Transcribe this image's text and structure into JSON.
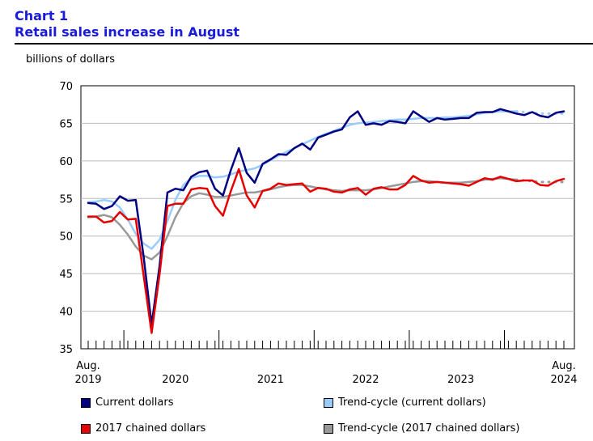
{
  "header": {
    "chart_number": "Chart 1",
    "title": "Retail sales increase in August"
  },
  "unit_label": "billions of dollars",
  "colors": {
    "current": "#000080",
    "trend_current": "#99CCFF",
    "chained": "#E60000",
    "trend_chained": "#999999",
    "title": "#1A1ADB"
  },
  "chart_data": {
    "type": "line",
    "title": "Retail sales increase in August",
    "ylabel": "billions of dollars",
    "xlabel": "",
    "ylim": [
      35,
      70
    ],
    "yticks": [
      35,
      40,
      45,
      50,
      55,
      60,
      65,
      70
    ],
    "x_start": "2019-08",
    "x_end": "2024-08",
    "x_tick_labels": [
      {
        "index": 0,
        "top": "Aug.",
        "bottom": "2019"
      },
      {
        "index": 11,
        "top": "",
        "bottom": "2020"
      },
      {
        "index": 23,
        "top": "",
        "bottom": "2021"
      },
      {
        "index": 35,
        "top": "",
        "bottom": "2022"
      },
      {
        "index": 47,
        "top": "",
        "bottom": "2023"
      },
      {
        "index": 60,
        "top": "Aug.",
        "bottom": "2024"
      }
    ],
    "year_boundaries": [
      4.5,
      16.5,
      28.5,
      40.5,
      52.5
    ],
    "series": [
      {
        "name": "Current dollars",
        "key": "current",
        "dotted_tail": 0,
        "values": [
          54.4,
          54.3,
          53.6,
          54.0,
          55.3,
          54.7,
          54.8,
          47.2,
          38.2,
          46.0,
          55.8,
          56.3,
          56.1,
          57.9,
          58.5,
          58.7,
          56.3,
          55.4,
          58.8,
          61.7,
          58.4,
          57.1,
          59.6,
          60.2,
          60.9,
          60.8,
          61.7,
          62.3,
          61.5,
          63.1,
          63.5,
          63.9,
          64.2,
          65.8,
          66.6,
          64.8,
          65.0,
          64.8,
          65.3,
          65.2,
          65.0,
          66.6,
          65.9,
          65.2,
          65.7,
          65.5,
          65.6,
          65.7,
          65.7,
          66.4,
          66.5,
          66.5,
          66.9,
          66.6,
          66.3,
          66.1,
          66.5,
          66.0,
          65.8,
          66.4,
          66.6
        ]
      },
      {
        "name": "Trend-cycle (current dollars)",
        "key": "trend_current",
        "dotted_tail": 6,
        "values": [
          54.5,
          54.6,
          54.8,
          54.6,
          53.8,
          52.2,
          50.3,
          49.0,
          48.3,
          49.5,
          52.0,
          54.8,
          56.8,
          57.7,
          58.0,
          58.0,
          57.8,
          57.9,
          58.2,
          58.6,
          58.8,
          59.0,
          59.5,
          60.1,
          60.7,
          61.2,
          61.7,
          62.2,
          62.7,
          63.2,
          63.6,
          64.0,
          64.4,
          64.8,
          65.0,
          65.1,
          65.2,
          65.3,
          65.4,
          65.5,
          65.5,
          65.6,
          65.7,
          65.7,
          65.7,
          65.8,
          65.8,
          65.9,
          66.0,
          66.2,
          66.4,
          66.5,
          66.6,
          66.6,
          66.6,
          66.5,
          66.4,
          66.3,
          66.3,
          66.3,
          66.3
        ]
      },
      {
        "name": "2017 chained dollars",
        "key": "chained",
        "dotted_tail": 0,
        "values": [
          52.6,
          52.6,
          51.8,
          52.0,
          53.2,
          52.2,
          52.3,
          44.7,
          37.1,
          44.9,
          54.0,
          54.3,
          54.3,
          56.2,
          56.4,
          56.3,
          54.0,
          52.7,
          56.0,
          58.9,
          55.4,
          53.8,
          56.0,
          56.3,
          57.0,
          56.8,
          56.9,
          57.0,
          55.9,
          56.4,
          56.3,
          55.9,
          55.8,
          56.2,
          56.4,
          55.5,
          56.3,
          56.5,
          56.2,
          56.2,
          56.8,
          58.0,
          57.4,
          57.1,
          57.2,
          57.1,
          57.0,
          56.9,
          56.7,
          57.2,
          57.7,
          57.5,
          57.9,
          57.6,
          57.3,
          57.4,
          57.4,
          56.8,
          56.7,
          57.3,
          57.6
        ]
      },
      {
        "name": "Trend-cycle (2017 chained dollars)",
        "key": "trend_chained",
        "dotted_tail": 6,
        "values": [
          52.5,
          52.6,
          52.8,
          52.5,
          51.5,
          50.2,
          48.6,
          47.4,
          46.9,
          47.8,
          50.0,
          52.5,
          54.4,
          55.3,
          55.7,
          55.5,
          55.2,
          55.2,
          55.4,
          55.6,
          55.8,
          55.8,
          56.0,
          56.2,
          56.5,
          56.7,
          56.8,
          56.8,
          56.6,
          56.4,
          56.2,
          56.1,
          56.0,
          56.1,
          56.1,
          56.1,
          56.2,
          56.4,
          56.6,
          56.8,
          57.0,
          57.2,
          57.3,
          57.3,
          57.2,
          57.1,
          57.1,
          57.1,
          57.2,
          57.3,
          57.5,
          57.6,
          57.7,
          57.6,
          57.5,
          57.4,
          57.3,
          57.2,
          57.2,
          57.2,
          57.2
        ]
      }
    ],
    "legend": [
      {
        "label": "Current dollars",
        "key": "current"
      },
      {
        "label": "Trend-cycle (current dollars)",
        "key": "trend_current"
      },
      {
        "label": "2017 chained dollars",
        "key": "chained"
      },
      {
        "label": "Trend-cycle (2017 chained dollars)",
        "key": "trend_chained"
      }
    ]
  }
}
